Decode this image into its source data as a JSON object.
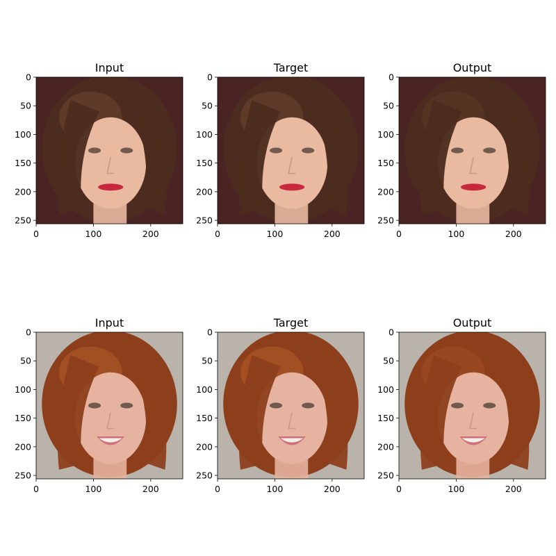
{
  "chart_data": {
    "type": "image-grid",
    "columns": [
      "Input",
      "Target",
      "Output"
    ],
    "rows": [
      {
        "panels": [
          {
            "title": "Input"
          },
          {
            "title": "Target"
          },
          {
            "title": "Output"
          }
        ],
        "palette": {
          "bg": "#4a2422",
          "hair": "#4b2c1e",
          "hair_hi": "#6a4530",
          "skin": "#e9b9a0",
          "lip": "#c8283e"
        }
      },
      {
        "panels": [
          {
            "title": "Input"
          },
          {
            "title": "Target"
          },
          {
            "title": "Output"
          }
        ],
        "palette": {
          "bg": "#b9b3ac",
          "hair": "#8d3f1c",
          "hair_hi": "#b05a2a",
          "skin": "#e6b3a0",
          "lip": "#d0707a"
        }
      }
    ],
    "x_ticks": [
      0,
      100,
      200
    ],
    "y_ticks": [
      0,
      50,
      100,
      150,
      200,
      250
    ],
    "xlim": [
      0,
      256
    ],
    "ylim": [
      256,
      0
    ]
  }
}
